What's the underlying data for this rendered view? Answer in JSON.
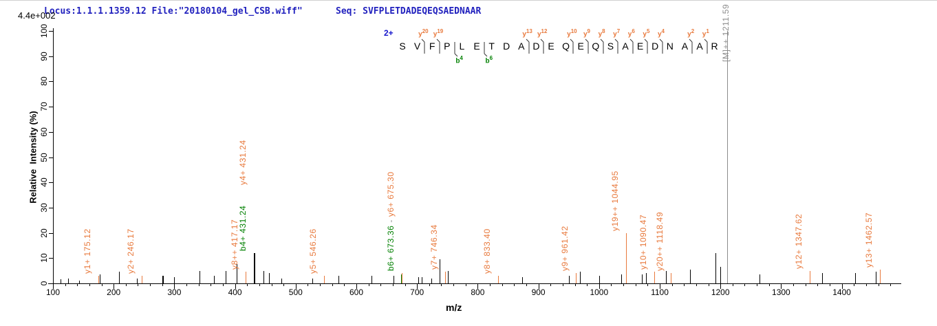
{
  "header": {
    "locus_file": "Locus:1.1.1.1359.12 File:\"20180104_gel_CSB.wiff\"",
    "seq_label": "Seq: SVFPLETDADEQEQSAEDNAAR",
    "max_intensity": "4.4e+002",
    "header_color": "#2121BE"
  },
  "axes": {
    "y_title": "Relative  Intensity (%)",
    "x_title": "m/z"
  },
  "colors": {
    "k": "#000000",
    "y": "#E8793C",
    "b": "#008000",
    "p": "#8C8C8C",
    "g": "#888888",
    "axis": "#000000",
    "header_blue": "#2121BE",
    "charge_blue": "#1515CC"
  },
  "sequence_diagram": {
    "charge": "2+",
    "residues": [
      "S",
      "V",
      "F",
      "P",
      "L",
      "E",
      "T",
      "D",
      "A",
      "D",
      "E",
      "Q",
      "E",
      "Q",
      "S",
      "A",
      "E",
      "D",
      "N",
      "A",
      "A",
      "R"
    ],
    "markers": [
      {
        "i": 2,
        "y": "20"
      },
      {
        "i": 3,
        "y": "19"
      },
      {
        "i": 4,
        "b": "4"
      },
      {
        "i": 6,
        "b": "6"
      },
      {
        "i": 9,
        "y": "13"
      },
      {
        "i": 10,
        "y": "12"
      },
      {
        "i": 12,
        "y": "10"
      },
      {
        "i": 13,
        "y": "9"
      },
      {
        "i": 14,
        "y": "8"
      },
      {
        "i": 15,
        "y": "7"
      },
      {
        "i": 16,
        "y": "6"
      },
      {
        "i": 17,
        "y": "5"
      },
      {
        "i": 18,
        "y": "4"
      },
      {
        "i": 20,
        "y": "2"
      },
      {
        "i": 21,
        "y": "1"
      }
    ]
  },
  "chart_data": {
    "type": "bar",
    "subtype": "ms2-stick-spectrum",
    "title": "",
    "xlabel": "m/z",
    "ylabel": "Relative  Intensity (%)",
    "xlim": [
      100,
      1495
    ],
    "ylim": [
      0,
      100
    ],
    "x_major_ticks": [
      100,
      200,
      300,
      400,
      500,
      600,
      700,
      800,
      900,
      1000,
      1100,
      1200,
      1300,
      1400
    ],
    "x_minor_step": 20,
    "y_ticks": [
      0,
      10,
      20,
      30,
      40,
      50,
      60,
      70,
      80,
      90,
      100
    ],
    "grid": false,
    "precursor": {
      "label": "[M]++ 1211.59",
      "mz": 1211.59
    },
    "peaks": [
      {
        "m": 112,
        "i": 1.5,
        "c": "k"
      },
      {
        "m": 125,
        "i": 2,
        "c": "k"
      },
      {
        "m": 143,
        "i": 1,
        "c": "k"
      },
      {
        "m": 175.12,
        "i": 3,
        "c": "y",
        "ion": "y1+"
      },
      {
        "m": 177,
        "i": 3.5,
        "c": "k"
      },
      {
        "m": 209,
        "i": 4.5,
        "c": "k"
      },
      {
        "m": 238,
        "i": 2,
        "c": "k"
      },
      {
        "m": 246.17,
        "i": 3,
        "c": "y",
        "ion": "y2+"
      },
      {
        "m": 280,
        "i": 3,
        "c": "k",
        "w": 2
      },
      {
        "m": 300,
        "i": 2.5,
        "c": "k"
      },
      {
        "m": 341,
        "i": 5,
        "c": "k"
      },
      {
        "m": 365,
        "i": 3,
        "c": "k"
      },
      {
        "m": 385,
        "i": 5,
        "c": "k"
      },
      {
        "m": 403,
        "i": 7.5,
        "c": "k"
      },
      {
        "m": 417.17,
        "i": 4.5,
        "c": "y",
        "ion": "y8++"
      },
      {
        "m": 431.24,
        "i": 12,
        "c": "k",
        "w": 2,
        "ion": "b4+/y4+"
      },
      {
        "m": 447,
        "i": 5,
        "c": "k"
      },
      {
        "m": 456,
        "i": 4,
        "c": "k"
      },
      {
        "m": 476,
        "i": 2,
        "c": "k"
      },
      {
        "m": 527,
        "i": 2,
        "c": "k"
      },
      {
        "m": 546.26,
        "i": 3,
        "c": "y",
        "ion": "y5+"
      },
      {
        "m": 570,
        "i": 3,
        "c": "k"
      },
      {
        "m": 625,
        "i": 3,
        "c": "k"
      },
      {
        "m": 661,
        "i": 3,
        "c": "k"
      },
      {
        "m": 673.36,
        "i": 3.5,
        "c": "b",
        "ion": "b6+"
      },
      {
        "m": 675.3,
        "i": 4,
        "c": "y",
        "ion": "y6+"
      },
      {
        "m": 702,
        "i": 2.5,
        "c": "k"
      },
      {
        "m": 708,
        "i": 2.5,
        "c": "k"
      },
      {
        "m": 724,
        "i": 2,
        "c": "k"
      },
      {
        "m": 737,
        "i": 9.5,
        "c": "k"
      },
      {
        "m": 746.34,
        "i": 4.5,
        "c": "y",
        "ion": "y7+"
      },
      {
        "m": 751,
        "i": 5,
        "c": "k"
      },
      {
        "m": 833.4,
        "i": 3,
        "c": "y",
        "ion": "y8+"
      },
      {
        "m": 873,
        "i": 2.5,
        "c": "k"
      },
      {
        "m": 950,
        "i": 3,
        "c": "k"
      },
      {
        "m": 961.42,
        "i": 4,
        "c": "y",
        "ion": "y9+"
      },
      {
        "m": 968,
        "i": 4.5,
        "c": "k"
      },
      {
        "m": 1000,
        "i": 3,
        "c": "k"
      },
      {
        "m": 1036,
        "i": 3.5,
        "c": "k"
      },
      {
        "m": 1044.95,
        "i": 20,
        "c": "y",
        "ion": "y19++"
      },
      {
        "m": 1071,
        "i": 3.5,
        "c": "k"
      },
      {
        "m": 1077,
        "i": 4,
        "c": "k"
      },
      {
        "m": 1090.47,
        "i": 4.5,
        "c": "y",
        "ion": "y10+"
      },
      {
        "m": 1110,
        "i": 5,
        "c": "k"
      },
      {
        "m": 1118.49,
        "i": 4,
        "c": "y",
        "ion": "y20++"
      },
      {
        "m": 1150,
        "i": 5.5,
        "c": "k"
      },
      {
        "m": 1192,
        "i": 12,
        "c": "k"
      },
      {
        "m": 1200,
        "i": 6.5,
        "c": "k"
      },
      {
        "m": 1211.59,
        "i": 100,
        "c": "p",
        "ion": "[M]++"
      },
      {
        "m": 1264,
        "i": 3.5,
        "c": "k"
      },
      {
        "m": 1347.62,
        "i": 5,
        "c": "y",
        "ion": "y12+"
      },
      {
        "m": 1368,
        "i": 4,
        "c": "k"
      },
      {
        "m": 1422,
        "i": 4,
        "c": "k"
      },
      {
        "m": 1456,
        "i": 4.5,
        "c": "k"
      },
      {
        "m": 1462.57,
        "i": 5.5,
        "c": "y",
        "ion": "y13+"
      }
    ],
    "peak_labels": [
      {
        "m": 175.12,
        "i": 3,
        "segs": [
          [
            "y1+ 175.12",
            "y"
          ]
        ]
      },
      {
        "m": 246.17,
        "i": 3,
        "segs": [
          [
            "y2+ 246.17",
            "y"
          ]
        ]
      },
      {
        "m": 417.17,
        "i": 4.5,
        "segs": [
          [
            "y8++ 417.17",
            "y"
          ]
        ]
      },
      {
        "m": 431.24,
        "i": 12,
        "segs": [
          [
            "b4+ 431.24",
            "b"
          ]
        ]
      },
      {
        "m": 431.24,
        "i": 12,
        "dy": 96,
        "segs": [
          [
            "y4+ 431.24",
            "y"
          ]
        ]
      },
      {
        "m": 546.26,
        "i": 3,
        "segs": [
          [
            "y5+ 546.26",
            "y"
          ]
        ]
      },
      {
        "m": 675.3,
        "i": 4,
        "segs": [
          [
            "b6+ 673.36",
            "b"
          ],
          [
            " - ",
            "g"
          ],
          [
            "y6+ 675.30",
            "y"
          ]
        ]
      },
      {
        "m": 746.34,
        "i": 4.5,
        "segs": [
          [
            "y7+ 746.34",
            "y"
          ]
        ]
      },
      {
        "m": 833.4,
        "i": 3,
        "segs": [
          [
            "y8+ 833.40",
            "y"
          ]
        ]
      },
      {
        "m": 961.42,
        "i": 4,
        "segs": [
          [
            "y9+ 961.42",
            "y"
          ]
        ]
      },
      {
        "m": 1044.95,
        "i": 20,
        "segs": [
          [
            "y19++ 1044.95",
            "y"
          ]
        ]
      },
      {
        "m": 1090.47,
        "i": 4.5,
        "segs": [
          [
            "y10+ 1090.47",
            "y"
          ]
        ]
      },
      {
        "m": 1118.49,
        "i": 4,
        "segs": [
          [
            "y20++ 1118.49",
            "y"
          ]
        ]
      },
      {
        "m": 1211.59,
        "i": 100,
        "dx": 4,
        "dy": -48,
        "segs": [
          [
            "[M]++ 1211.59",
            "p"
          ]
        ]
      },
      {
        "m": 1347.62,
        "i": 5,
        "segs": [
          [
            "y12+ 1347.62",
            "y"
          ]
        ]
      },
      {
        "m": 1462.57,
        "i": 5.5,
        "segs": [
          [
            "y13+ 1462.57",
            "y"
          ]
        ]
      }
    ]
  }
}
